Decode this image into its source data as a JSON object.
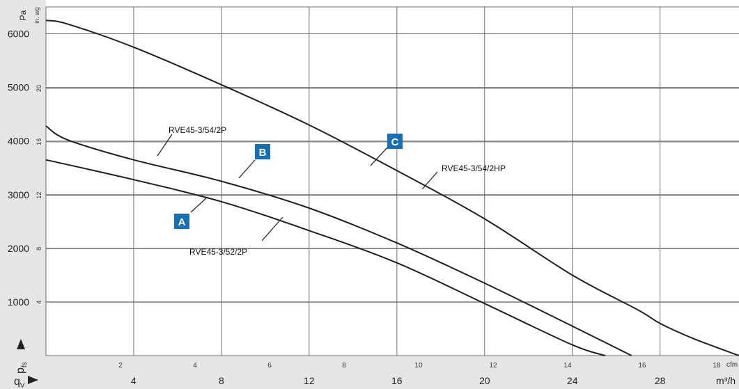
{
  "chart_data": {
    "type": "line",
    "units": {
      "y_primary": "Pa",
      "y_secondary": "in. wg",
      "x_primary": "m³/h",
      "x_secondary": "cfm"
    },
    "x_axis_symbol": "qv",
    "y_axis_symbol": "pfs",
    "xlim": [
      0,
      31600
    ],
    "ylim": [
      0,
      6500
    ],
    "ticks": {
      "pa": [
        1000,
        2000,
        3000,
        4000,
        5000,
        6000
      ],
      "inwg": [
        4,
        8,
        12,
        16,
        20
      ],
      "m3h": [
        4,
        8,
        12,
        16,
        20,
        24,
        28
      ],
      "cfm": [
        2,
        4,
        6,
        8,
        10,
        12,
        14,
        16,
        18
      ]
    },
    "series": [
      {
        "name": "RVE45-3/52/2P",
        "badge": "A",
        "points": [
          [
            0,
            3650
          ],
          [
            4000,
            3280
          ],
          [
            8000,
            2870
          ],
          [
            12000,
            2330
          ],
          [
            16000,
            1730
          ],
          [
            20000,
            970
          ],
          [
            24000,
            200
          ],
          [
            25500,
            0
          ]
        ]
      },
      {
        "name": "RVE45-3/54/2P",
        "badge": "B",
        "points": [
          [
            0,
            4280
          ],
          [
            1000,
            4020
          ],
          [
            4000,
            3650
          ],
          [
            8000,
            3250
          ],
          [
            12000,
            2750
          ],
          [
            16000,
            2100
          ],
          [
            20000,
            1350
          ],
          [
            24000,
            550
          ],
          [
            26700,
            0
          ]
        ]
      },
      {
        "name": "RVE45-3/54/2HP",
        "badge": "C",
        "points": [
          [
            0,
            6250
          ],
          [
            1000,
            6180
          ],
          [
            4000,
            5750
          ],
          [
            8000,
            5050
          ],
          [
            12000,
            4300
          ],
          [
            16000,
            3450
          ],
          [
            20000,
            2550
          ],
          [
            24000,
            1500
          ],
          [
            27000,
            850
          ],
          [
            28000,
            600
          ],
          [
            29500,
            320
          ],
          [
            31600,
            0
          ]
        ]
      }
    ]
  }
}
